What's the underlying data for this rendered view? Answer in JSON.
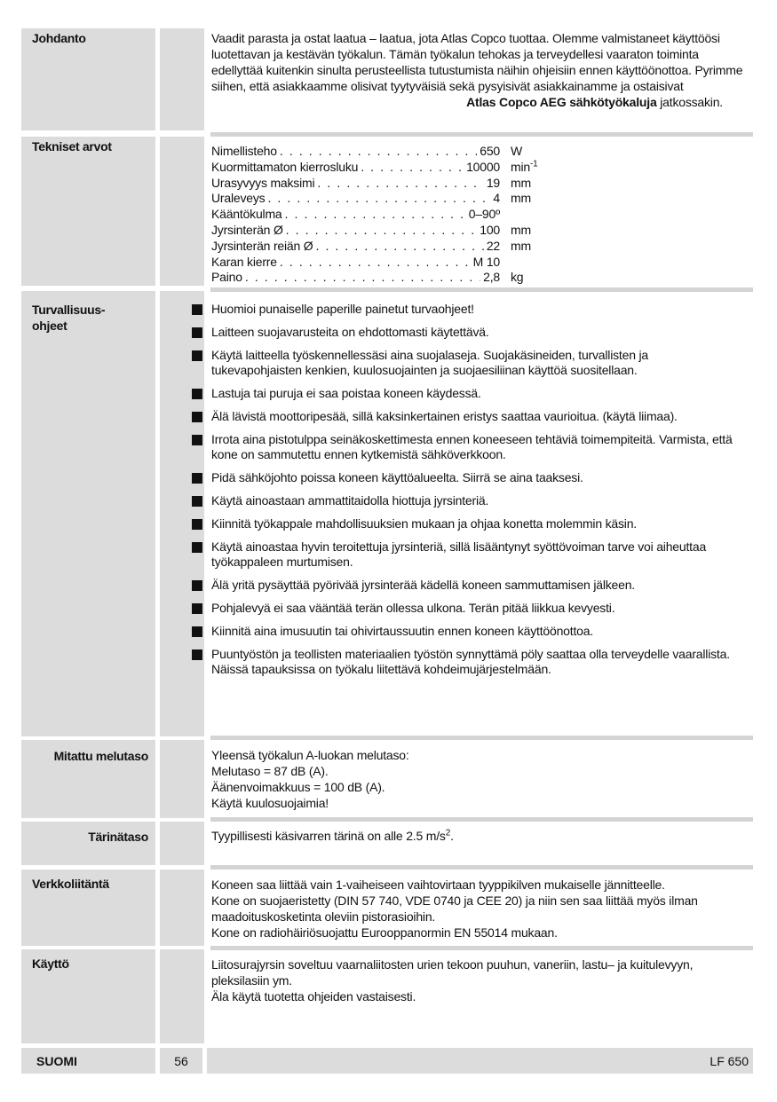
{
  "sections": {
    "intro": {
      "title": "Johdanto",
      "text": "Vaadit parasta ja ostat laatua – laatua, jota Atlas Copco tuottaa. Olemme valmistaneet käyttöösi luotettavan ja kestävän työkalun. Tämän työkalun tehokas ja terveydellesi vaaraton toiminta edellyttää kuitenkin sinulta perusteellista tutustumista näihin ohjeisiin ennen käyttöönottoa. Pyrimme siihen, että asiakkaamme olisivat tyytyväisiä sekä pysyisivät asiakkainamme ja ostaisivat",
      "closing_bold": "Atlas Copco AEG sähkötyökaluja",
      "closing_rest": " jatkossakin."
    },
    "specs": {
      "title": "Tekniset arvot",
      "rows": [
        {
          "label": "Nimellisteho",
          "value": "650",
          "unit": "W"
        },
        {
          "label": "Kuormittamaton kierrosluku",
          "value": "10000",
          "unit": "min",
          "sup": "-1"
        },
        {
          "label": "Urasyvyys maksimi",
          "value": "19",
          "unit": "mm"
        },
        {
          "label": "Uraleveys",
          "value": "4",
          "unit": "mm"
        },
        {
          "label": "Kääntökulma",
          "value": "0–90º",
          "unit": ""
        },
        {
          "label": "Jyrsinterän Ø",
          "value": "100",
          "unit": "mm"
        },
        {
          "label": "Jyrsinterän reiän Ø",
          "value": "22",
          "unit": "mm"
        },
        {
          "label": "Karan kierre",
          "value": "M 10",
          "unit": ""
        },
        {
          "label": "Paino",
          "value": "2,8",
          "unit": "kg"
        }
      ]
    },
    "safety": {
      "title": "Turvallisuus-ohjeet",
      "items": [
        "Huomioi  punaiselle paperille painetut turvaohjeet!",
        "Laitteen suojavarusteita on ehdottomasti käytettävä.",
        "Käytä laitteella työskennellessäsi aina suojalaseja. Suojakäsineiden, turvallisten ja tukevapohjaisten kenkien, kuulosuojainten ja suojaesiliinan käyttöä suositellaan.",
        "Lastuja tai puruja ei saa poistaa koneen käydessä.",
        "Älä lävistä moottoripesää, sillä kaksinkertainen eristys saattaa vaurioitua. (käytä liimaa).",
        "Irrota aina pistotulppa seinäkoskettimesta ennen koneeseen tehtäviä toimempiteitä. Varmista, että kone on sammutettu ennen kytkemistä sähköverkkoon.",
        "Pidä sähköjohto poissa koneen käyttöalueelta. Siirrä se aina taaksesi.",
        "Käytä ainoastaan ammattitaidolla hiottuja jyrsinteriä.",
        "Kiinnitä työkappale mahdollisuuksien mukaan ja ohjaa konetta molemmin käsin.",
        "Käytä ainoastaa hyvin teroitettuja jyrsinteriä, sillä lisääntynyt syöttövoiman tarve voi aiheuttaa työkappaleen murtumisen.",
        "Älä yritä pysäyttää pyörivää jyrsinterää kädellä koneen sammuttamisen jälkeen.",
        "Pohjalevyä ei saa vääntää terän ollessa ulkona. Terän pitää liikkua kevyesti.",
        "Kiinnitä aina imusuutin tai ohivirtaussuutin ennen koneen käyttöönottoa.",
        "Puuntyöstön ja teollisten materiaalien työstön synnyttämä pöly saattaa olla terveydelle vaarallista. Näissä tapauksissa on työkalu liitettävä kohdeimujärjestelmään."
      ]
    },
    "noise": {
      "title": "Mitattu melutaso",
      "lines": [
        "Yleensä työkalun A-luokan melutaso:",
        "Melutaso = 87 dB (A).",
        "Äänenvoimakkuus = 100 dB (A).",
        "Käytä kuulosuojaimia!"
      ]
    },
    "vibration": {
      "title": "Tärinätaso",
      "text": "Tyypillisesti käsivarren tärinä on alle 2.5 m/s",
      "sup": "2",
      "end": "."
    },
    "mains": {
      "title": "Verkkoliitäntä",
      "lines": [
        "Koneen saa liittää vain 1-vaiheiseen vaihtovirtaan tyyppikilven mukaiselle jännitteelle.",
        "Kone on suojaeristetty (DIN 57 740, VDE 0740 ja CEE 20) ja niin sen saa liittää myös ilman maadoituskosketinta oleviin pistorasioihin.",
        "Kone on radiohäiriösuojattu Eurooppanormin EN 55014 mukaan."
      ]
    },
    "use": {
      "title": "Käyttö",
      "lines": [
        "Liitosurajyrsin soveltuu vaarnaliitosten urien tekoon puuhun, vaneriin, lastu– ja kuitulevyyn, pleksilasiin ym.",
        "Äla käytä tuotetta ohjeiden vastaisesti."
      ]
    }
  },
  "footer": {
    "language": "SUOMI",
    "page": "56",
    "model": "LF 650"
  }
}
